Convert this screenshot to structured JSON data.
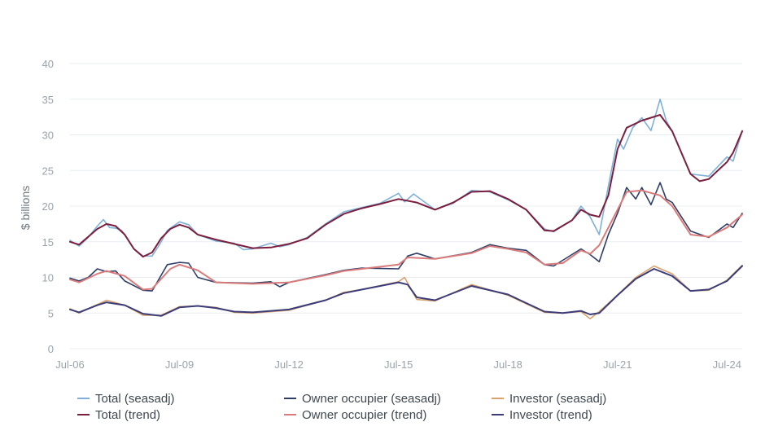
{
  "chart_data": {
    "type": "line",
    "title": "",
    "xlabel": "",
    "ylabel": "$ billions",
    "ylim": [
      0,
      40
    ],
    "yticks": [
      0,
      5,
      10,
      15,
      20,
      25,
      30,
      35,
      40
    ],
    "xticks": [
      "Jul-06",
      "Jul-09",
      "Jul-12",
      "Jul-15",
      "Jul-18",
      "Jul-21",
      "Jul-24"
    ],
    "xlim": [
      "2006-07",
      "2024-12"
    ],
    "grid": "horizontal",
    "legend_position": "bottom",
    "series": [
      {
        "name": "Total (seasadj)",
        "color": "#7fb0d8",
        "points": [
          [
            "2006-07",
            15.2
          ],
          [
            "2006-10",
            14.4
          ],
          [
            "2007-01",
            15.6
          ],
          [
            "2007-04",
            17.2
          ],
          [
            "2007-06",
            18.1
          ],
          [
            "2007-08",
            17.0
          ],
          [
            "2007-10",
            16.9
          ],
          [
            "2007-12",
            16.6
          ],
          [
            "2008-04",
            14.0
          ],
          [
            "2008-07",
            13.0
          ],
          [
            "2008-10",
            13.0
          ],
          [
            "2009-01",
            15.0
          ],
          [
            "2009-03",
            16.6
          ],
          [
            "2009-07",
            17.8
          ],
          [
            "2009-10",
            17.4
          ],
          [
            "2010-01",
            16.0
          ],
          [
            "2010-07",
            15.1
          ],
          [
            "2011-01",
            14.8
          ],
          [
            "2011-04",
            13.9
          ],
          [
            "2011-07",
            14.0
          ],
          [
            "2012-01",
            14.8
          ],
          [
            "2012-04",
            14.3
          ],
          [
            "2012-07",
            14.6
          ],
          [
            "2013-01",
            15.6
          ],
          [
            "2013-07",
            17.5
          ],
          [
            "2014-01",
            19.2
          ],
          [
            "2014-07",
            19.8
          ],
          [
            "2015-01",
            20.4
          ],
          [
            "2015-07",
            21.8
          ],
          [
            "2015-09",
            20.6
          ],
          [
            "2015-12",
            21.7
          ],
          [
            "2016-07",
            19.5
          ],
          [
            "2017-01",
            20.4
          ],
          [
            "2017-07",
            22.2
          ],
          [
            "2018-01",
            22.0
          ],
          [
            "2018-07",
            20.9
          ],
          [
            "2019-01",
            19.5
          ],
          [
            "2019-07",
            16.8
          ],
          [
            "2019-10",
            16.4
          ],
          [
            "2020-04",
            18.0
          ],
          [
            "2020-07",
            20.0
          ],
          [
            "2020-10",
            18.5
          ],
          [
            "2021-01",
            16.0
          ],
          [
            "2021-04",
            22.8
          ],
          [
            "2021-07",
            29.4
          ],
          [
            "2021-09",
            28.0
          ],
          [
            "2021-12",
            31.0
          ],
          [
            "2022-03",
            32.4
          ],
          [
            "2022-06",
            30.6
          ],
          [
            "2022-09",
            35.0
          ],
          [
            "2022-11",
            32.0
          ],
          [
            "2023-01",
            30.5
          ],
          [
            "2023-07",
            24.5
          ],
          [
            "2024-01",
            24.2
          ],
          [
            "2024-07",
            26.9
          ],
          [
            "2024-09",
            26.3
          ],
          [
            "2024-12",
            30.6
          ]
        ]
      },
      {
        "name": "Owner occupier (seasadj)",
        "color": "#2e3e66",
        "points": [
          [
            "2006-07",
            9.9
          ],
          [
            "2006-10",
            9.5
          ],
          [
            "2007-01",
            10.0
          ],
          [
            "2007-04",
            11.2
          ],
          [
            "2007-07",
            10.8
          ],
          [
            "2007-10",
            10.9
          ],
          [
            "2008-01",
            9.5
          ],
          [
            "2008-07",
            8.2
          ],
          [
            "2008-10",
            8.1
          ],
          [
            "2009-03",
            11.8
          ],
          [
            "2009-07",
            12.1
          ],
          [
            "2009-10",
            12.0
          ],
          [
            "2010-01",
            10.0
          ],
          [
            "2010-07",
            9.3
          ],
          [
            "2011-07",
            9.2
          ],
          [
            "2012-01",
            9.4
          ],
          [
            "2012-04",
            8.7
          ],
          [
            "2012-07",
            9.3
          ],
          [
            "2013-07",
            10.4
          ],
          [
            "2014-01",
            11.0
          ],
          [
            "2014-07",
            11.3
          ],
          [
            "2015-07",
            11.2
          ],
          [
            "2015-10",
            13.0
          ],
          [
            "2016-01",
            13.4
          ],
          [
            "2016-07",
            12.6
          ],
          [
            "2017-07",
            13.5
          ],
          [
            "2018-01",
            14.6
          ],
          [
            "2018-07",
            14.1
          ],
          [
            "2019-01",
            13.8
          ],
          [
            "2019-07",
            11.8
          ],
          [
            "2019-10",
            11.6
          ],
          [
            "2020-07",
            14.0
          ],
          [
            "2020-10",
            13.2
          ],
          [
            "2021-01",
            12.2
          ],
          [
            "2021-04",
            16.0
          ],
          [
            "2021-07",
            19.0
          ],
          [
            "2021-10",
            22.6
          ],
          [
            "2022-01",
            21.0
          ],
          [
            "2022-03",
            22.6
          ],
          [
            "2022-06",
            20.2
          ],
          [
            "2022-09",
            23.3
          ],
          [
            "2022-11",
            21.0
          ],
          [
            "2023-01",
            20.5
          ],
          [
            "2023-07",
            16.5
          ],
          [
            "2024-01",
            15.6
          ],
          [
            "2024-07",
            17.5
          ],
          [
            "2024-09",
            17.0
          ],
          [
            "2024-12",
            19.0
          ]
        ]
      },
      {
        "name": "Investor (seasadj)",
        "color": "#d9a36e",
        "points": [
          [
            "2006-07",
            5.6
          ],
          [
            "2006-10",
            5.0
          ],
          [
            "2007-04",
            6.2
          ],
          [
            "2007-07",
            6.8
          ],
          [
            "2008-01",
            6.1
          ],
          [
            "2008-07",
            4.7
          ],
          [
            "2009-01",
            4.7
          ],
          [
            "2009-07",
            5.9
          ],
          [
            "2010-01",
            6.0
          ],
          [
            "2010-07",
            5.8
          ],
          [
            "2011-01",
            5.1
          ],
          [
            "2011-07",
            5.0
          ],
          [
            "2012-07",
            5.4
          ],
          [
            "2013-07",
            6.8
          ],
          [
            "2014-01",
            7.9
          ],
          [
            "2014-07",
            8.3
          ],
          [
            "2015-07",
            9.4
          ],
          [
            "2015-09",
            10.0
          ],
          [
            "2016-01",
            6.9
          ],
          [
            "2016-07",
            6.7
          ],
          [
            "2017-07",
            9.0
          ],
          [
            "2018-07",
            7.5
          ],
          [
            "2019-07",
            5.1
          ],
          [
            "2020-01",
            5.0
          ],
          [
            "2020-07",
            5.2
          ],
          [
            "2020-10",
            4.2
          ],
          [
            "2021-01",
            5.2
          ],
          [
            "2021-07",
            7.5
          ],
          [
            "2022-01",
            10.0
          ],
          [
            "2022-07",
            11.6
          ],
          [
            "2023-01",
            10.5
          ],
          [
            "2023-07",
            8.1
          ],
          [
            "2024-01",
            8.2
          ],
          [
            "2024-07",
            9.6
          ],
          [
            "2024-12",
            11.7
          ]
        ]
      },
      {
        "name": "Total (trend)",
        "color": "#7a1f3d",
        "points": [
          [
            "2006-07",
            15.0
          ],
          [
            "2006-10",
            14.6
          ],
          [
            "2007-04",
            16.8
          ],
          [
            "2007-07",
            17.5
          ],
          [
            "2007-10",
            17.2
          ],
          [
            "2008-01",
            16.0
          ],
          [
            "2008-04",
            14.0
          ],
          [
            "2008-07",
            12.9
          ],
          [
            "2008-10",
            13.5
          ],
          [
            "2009-01",
            15.5
          ],
          [
            "2009-04",
            16.8
          ],
          [
            "2009-07",
            17.4
          ],
          [
            "2009-10",
            17.0
          ],
          [
            "2010-01",
            16.0
          ],
          [
            "2010-07",
            15.3
          ],
          [
            "2011-01",
            14.7
          ],
          [
            "2011-07",
            14.1
          ],
          [
            "2012-01",
            14.2
          ],
          [
            "2012-07",
            14.7
          ],
          [
            "2013-01",
            15.5
          ],
          [
            "2013-07",
            17.4
          ],
          [
            "2014-01",
            18.9
          ],
          [
            "2014-07",
            19.7
          ],
          [
            "2015-01",
            20.3
          ],
          [
            "2015-07",
            21.0
          ],
          [
            "2016-01",
            20.5
          ],
          [
            "2016-07",
            19.5
          ],
          [
            "2017-01",
            20.5
          ],
          [
            "2017-07",
            22.0
          ],
          [
            "2018-01",
            22.1
          ],
          [
            "2018-07",
            21.0
          ],
          [
            "2019-01",
            19.5
          ],
          [
            "2019-07",
            16.6
          ],
          [
            "2019-10",
            16.5
          ],
          [
            "2020-04",
            18.0
          ],
          [
            "2020-07",
            19.5
          ],
          [
            "2020-10",
            18.8
          ],
          [
            "2021-01",
            18.5
          ],
          [
            "2021-04",
            21.5
          ],
          [
            "2021-07",
            28.0
          ],
          [
            "2021-10",
            31.0
          ],
          [
            "2022-03",
            32.0
          ],
          [
            "2022-09",
            32.8
          ],
          [
            "2023-01",
            30.5
          ],
          [
            "2023-07",
            24.5
          ],
          [
            "2023-10",
            23.5
          ],
          [
            "2024-01",
            23.8
          ],
          [
            "2024-07",
            26.2
          ],
          [
            "2024-09",
            27.5
          ],
          [
            "2024-12",
            30.5
          ]
        ]
      },
      {
        "name": "Owner occupier (trend)",
        "color": "#d97b7b",
        "points": [
          [
            "2006-07",
            9.7
          ],
          [
            "2006-10",
            9.3
          ],
          [
            "2007-04",
            10.5
          ],
          [
            "2007-07",
            10.9
          ],
          [
            "2008-01",
            10.2
          ],
          [
            "2008-07",
            8.3
          ],
          [
            "2008-10",
            8.4
          ],
          [
            "2009-04",
            11.2
          ],
          [
            "2009-07",
            11.8
          ],
          [
            "2010-01",
            11.0
          ],
          [
            "2010-07",
            9.3
          ],
          [
            "2011-07",
            9.1
          ],
          [
            "2012-07",
            9.3
          ],
          [
            "2013-07",
            10.3
          ],
          [
            "2014-01",
            10.9
          ],
          [
            "2014-07",
            11.2
          ],
          [
            "2015-07",
            11.8
          ],
          [
            "2015-10",
            12.8
          ],
          [
            "2016-07",
            12.6
          ],
          [
            "2017-07",
            13.4
          ],
          [
            "2018-01",
            14.4
          ],
          [
            "2018-07",
            14.0
          ],
          [
            "2019-01",
            13.5
          ],
          [
            "2019-07",
            11.8
          ],
          [
            "2020-01",
            12.0
          ],
          [
            "2020-07",
            13.8
          ],
          [
            "2020-10",
            13.3
          ],
          [
            "2021-01",
            14.5
          ],
          [
            "2021-07",
            19.5
          ],
          [
            "2021-10",
            22.0
          ],
          [
            "2022-03",
            22.2
          ],
          [
            "2022-09",
            21.5
          ],
          [
            "2023-01",
            20.0
          ],
          [
            "2023-07",
            16.0
          ],
          [
            "2024-01",
            15.7
          ],
          [
            "2024-07",
            17.0
          ],
          [
            "2024-12",
            18.8
          ]
        ]
      },
      {
        "name": "Investor (trend)",
        "color": "#3b3c78",
        "points": [
          [
            "2006-07",
            5.5
          ],
          [
            "2006-10",
            5.1
          ],
          [
            "2007-04",
            6.1
          ],
          [
            "2007-07",
            6.5
          ],
          [
            "2008-01",
            6.1
          ],
          [
            "2008-07",
            4.9
          ],
          [
            "2009-01",
            4.6
          ],
          [
            "2009-07",
            5.8
          ],
          [
            "2010-01",
            6.0
          ],
          [
            "2010-07",
            5.7
          ],
          [
            "2011-01",
            5.2
          ],
          [
            "2011-07",
            5.1
          ],
          [
            "2012-07",
            5.5
          ],
          [
            "2013-07",
            6.8
          ],
          [
            "2014-01",
            7.8
          ],
          [
            "2014-07",
            8.3
          ],
          [
            "2015-07",
            9.3
          ],
          [
            "2015-10",
            9.0
          ],
          [
            "2016-01",
            7.2
          ],
          [
            "2016-07",
            6.8
          ],
          [
            "2017-07",
            8.8
          ],
          [
            "2018-07",
            7.6
          ],
          [
            "2019-07",
            5.2
          ],
          [
            "2020-01",
            5.0
          ],
          [
            "2020-07",
            5.3
          ],
          [
            "2020-10",
            4.8
          ],
          [
            "2021-01",
            5.0
          ],
          [
            "2021-07",
            7.5
          ],
          [
            "2022-01",
            9.8
          ],
          [
            "2022-07",
            11.2
          ],
          [
            "2023-01",
            10.2
          ],
          [
            "2023-07",
            8.1
          ],
          [
            "2024-01",
            8.3
          ],
          [
            "2024-07",
            9.5
          ],
          [
            "2024-12",
            11.6
          ]
        ]
      }
    ]
  }
}
